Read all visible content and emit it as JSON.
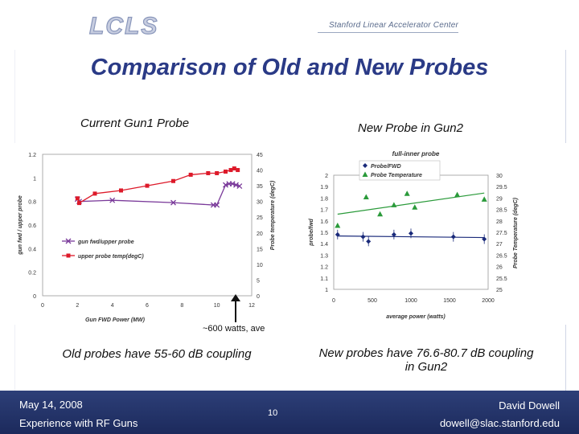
{
  "header": {
    "logo_text": "LCLS",
    "org": "Stanford Linear Accelerator Center"
  },
  "title": "Comparison of Old and New Probes",
  "left": {
    "subtitle": "Current Gun1 Probe",
    "caption": "Old probes have 55-60 dB coupling"
  },
  "right": {
    "subtitle": "New Probe in Gun2",
    "caption": "New probes have 76.6-80.7 dB coupling in Gun2"
  },
  "arrow_label": "~600 watts, ave",
  "footer": {
    "date": "May 14, 2008",
    "event": "Experience with RF Guns",
    "page": "10",
    "author": "David Dowell",
    "email": "dowell@slac.stanford.edu"
  },
  "colors": {
    "accent": "#2a3a86",
    "band": "#1c2a5c",
    "series_purple": "#7a3a9a",
    "series_red": "#dd1a2a",
    "series_blue": "#1a2a7a",
    "series_green": "#2a9a3a"
  },
  "chart_data": [
    {
      "type": "line",
      "title": "",
      "xlabel": "Gun FWD Power (MW)",
      "ylabel": "gun fwd / upper probe",
      "y2label": "Probe temperature (degC)",
      "xlim": [
        0,
        12
      ],
      "ylim": [
        0,
        1.2
      ],
      "y2lim": [
        0,
        45
      ],
      "x_ticks": [
        "0",
        "2",
        "4",
        "6",
        "8",
        "10",
        "12"
      ],
      "y_ticks": [
        "0",
        "0.2",
        "0.4",
        "0.6",
        "0.8",
        "1",
        "1.2"
      ],
      "y2_ticks": [
        "0",
        "5",
        "10",
        "15",
        "20",
        "25",
        "30",
        "35",
        "40",
        "45"
      ],
      "series": [
        {
          "name": "gun fwd/upper probe",
          "axis": "left",
          "marker": "x",
          "x": [
            2.0,
            2.1,
            4.0,
            7.5,
            9.8,
            10.0,
            10.5,
            10.7,
            10.9,
            11.1,
            11.3
          ],
          "y": [
            0.82,
            0.8,
            0.81,
            0.79,
            0.77,
            0.77,
            0.94,
            0.95,
            0.95,
            0.94,
            0.93
          ]
        },
        {
          "name": "upper probe temp(degC)",
          "axis": "right",
          "marker": "square",
          "x": [
            2.0,
            2.1,
            3.0,
            4.5,
            6.0,
            7.5,
            8.5,
            9.5,
            10.0,
            10.5,
            10.8,
            11.0,
            11.2
          ],
          "y": [
            31.0,
            29.5,
            32.5,
            33.5,
            35.0,
            36.5,
            38.5,
            39.0,
            39.0,
            39.5,
            40.0,
            40.5,
            40.0
          ]
        }
      ]
    },
    {
      "type": "scatter",
      "title": "full-inner probe",
      "xlabel": "average power (watts)",
      "ylabel": "probe/fwd",
      "y2label": "Probe Temperature (degC)",
      "xlim": [
        0,
        2000
      ],
      "ylim": [
        1,
        2
      ],
      "y2lim": [
        25,
        30
      ],
      "x_ticks": [
        "0",
        "500",
        "1000",
        "1500",
        "2000"
      ],
      "y_ticks": [
        "1",
        "1.1",
        "1.2",
        "1.3",
        "1.4",
        "1.5",
        "1.6",
        "1.7",
        "1.8",
        "1.9",
        "2"
      ],
      "y2_ticks": [
        "25",
        "25.5",
        "26",
        "26.5",
        "27",
        "27.5",
        "28",
        "28.5",
        "29",
        "29.5",
        "30"
      ],
      "series": [
        {
          "name": "Probe/FWD",
          "axis": "left",
          "marker": "diamond",
          "x": [
            50,
            380,
            450,
            780,
            1000,
            1550,
            1950
          ],
          "y": [
            1.48,
            1.46,
            1.42,
            1.48,
            1.49,
            1.46,
            1.44
          ]
        },
        {
          "name": "Probe Temperature",
          "axis": "right",
          "marker": "triangle",
          "x": [
            50,
            420,
            600,
            780,
            950,
            1050,
            1600,
            1950
          ],
          "y": [
            27.8,
            29.05,
            28.3,
            28.7,
            29.2,
            28.6,
            29.15,
            28.95
          ]
        }
      ]
    }
  ]
}
